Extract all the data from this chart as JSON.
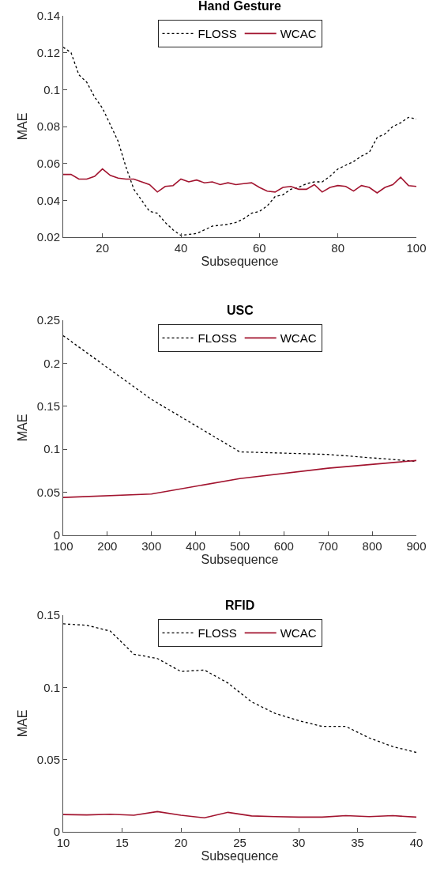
{
  "chart_data": [
    {
      "type": "line",
      "title": "Hand Gesture",
      "xlabel": "Subsequence",
      "ylabel": "MAE",
      "legend": "top",
      "x": [
        10,
        12,
        14,
        16,
        18,
        20,
        22,
        24,
        26,
        28,
        30,
        32,
        34,
        36,
        38,
        40,
        42,
        44,
        46,
        48,
        50,
        52,
        54,
        56,
        58,
        60,
        62,
        64,
        66,
        68,
        70,
        72,
        74,
        76,
        78,
        80,
        82,
        84,
        86,
        88,
        90,
        92,
        94,
        96,
        98,
        100
      ],
      "xlim": [
        10,
        100
      ],
      "xticks": [
        20,
        40,
        60,
        80,
        100
      ],
      "ylim": [
        0.02,
        0.14
      ],
      "yticks": [
        0.02,
        0.04,
        0.06,
        0.08,
        0.1,
        0.12,
        0.14
      ],
      "series": [
        {
          "name": "FLOSS",
          "color": "#000000",
          "line_style": "dotted",
          "values": [
            0.123,
            0.12,
            0.108,
            0.104,
            0.096,
            0.09,
            0.081,
            0.072,
            0.058,
            0.046,
            0.04,
            0.034,
            0.033,
            0.028,
            0.024,
            0.021,
            0.0215,
            0.022,
            0.024,
            0.026,
            0.0265,
            0.027,
            0.028,
            0.03,
            0.033,
            0.034,
            0.037,
            0.042,
            0.043,
            0.046,
            0.047,
            0.049,
            0.05,
            0.05,
            0.053,
            0.057,
            0.059,
            0.061,
            0.064,
            0.066,
            0.074,
            0.076,
            0.08,
            0.082,
            0.085,
            0.084
          ]
        },
        {
          "name": "WCAC",
          "color": "#a2142f",
          "line_style": "solid",
          "values": [
            0.054,
            0.054,
            0.0515,
            0.0515,
            0.053,
            0.057,
            0.0535,
            0.052,
            0.0515,
            0.0515,
            0.05,
            0.0485,
            0.0445,
            0.0475,
            0.048,
            0.0515,
            0.05,
            0.051,
            0.0495,
            0.05,
            0.0485,
            0.0495,
            0.0485,
            0.049,
            0.0495,
            0.047,
            0.045,
            0.0445,
            0.047,
            0.0475,
            0.046,
            0.046,
            0.0485,
            0.0445,
            0.047,
            0.048,
            0.0475,
            0.045,
            0.048,
            0.047,
            0.044,
            0.047,
            0.0485,
            0.0525,
            0.048,
            0.0475
          ]
        }
      ]
    },
    {
      "type": "line",
      "title": "USC",
      "xlabel": "Subsequence",
      "ylabel": "MAE",
      "legend": "top",
      "x": [
        100,
        300,
        500,
        700,
        900
      ],
      "xlim": [
        100,
        900
      ],
      "xticks": [
        100,
        200,
        300,
        400,
        500,
        600,
        700,
        800,
        900
      ],
      "ylim": [
        0,
        0.25
      ],
      "yticks": [
        0,
        0.05,
        0.1,
        0.15,
        0.2,
        0.25
      ],
      "series": [
        {
          "name": "FLOSS",
          "color": "#000000",
          "line_style": "dotted",
          "values": [
            0.232,
            0.158,
            0.097,
            0.094,
            0.086
          ]
        },
        {
          "name": "WCAC",
          "color": "#a2142f",
          "line_style": "solid",
          "values": [
            0.044,
            0.048,
            0.066,
            0.078,
            0.087
          ]
        }
      ]
    },
    {
      "type": "line",
      "title": "RFID",
      "xlabel": "Subsequence",
      "ylabel": "MAE",
      "legend": "top",
      "x": [
        10,
        12,
        14,
        16,
        18,
        20,
        22,
        24,
        26,
        28,
        30,
        32,
        34,
        36,
        38,
        40
      ],
      "xlim": [
        10,
        40
      ],
      "xticks": [
        10,
        15,
        20,
        25,
        30,
        35,
        40
      ],
      "ylim": [
        0,
        0.15
      ],
      "yticks": [
        0,
        0.05,
        0.1,
        0.15
      ],
      "series": [
        {
          "name": "FLOSS",
          "color": "#000000",
          "line_style": "dotted",
          "values": [
            0.144,
            0.143,
            0.139,
            0.123,
            0.12,
            0.111,
            0.112,
            0.103,
            0.09,
            0.082,
            0.077,
            0.073,
            0.073,
            0.065,
            0.059,
            0.055
          ]
        },
        {
          "name": "WCAC",
          "color": "#a2142f",
          "line_style": "solid",
          "values": [
            0.012,
            0.0117,
            0.0122,
            0.0115,
            0.014,
            0.0115,
            0.0097,
            0.0135,
            0.011,
            0.0105,
            0.0102,
            0.0102,
            0.0112,
            0.0105,
            0.0112,
            0.0102
          ]
        }
      ]
    }
  ]
}
